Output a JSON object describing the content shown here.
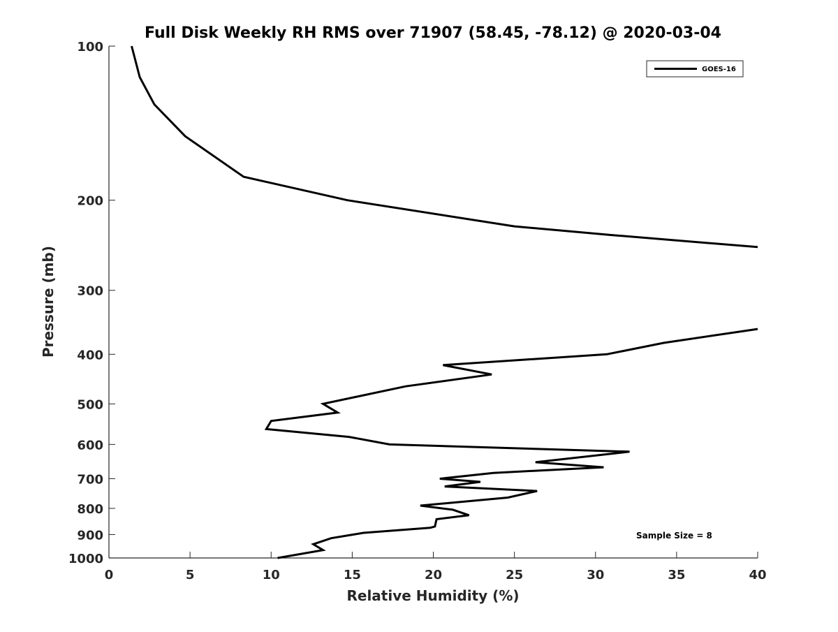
{
  "chart_data": {
    "type": "line",
    "title": "Full Disk Weekly RH RMS over 71907 (58.45, -78.12) @ 2020-03-04",
    "xlabel": "Relative Humidity (%)",
    "ylabel": "Pressure (mb)",
    "xlim": [
      0,
      40
    ],
    "ylim": [
      100,
      1000
    ],
    "y_scale": "log",
    "y_reversed": true,
    "grid": false,
    "xticks": [
      0,
      5,
      10,
      15,
      20,
      25,
      30,
      35,
      40
    ],
    "yticks": [
      100,
      200,
      300,
      400,
      500,
      600,
      700,
      800,
      900,
      1000
    ],
    "legend_position": "top-right",
    "annotation": "Sample Size = 8",
    "series": [
      {
        "name": "GOES-16",
        "color": "#000000",
        "segments": [
          [
            [
              1.4,
              100
            ],
            [
              1.9,
              115
            ],
            [
              2.8,
              130
            ],
            [
              4.7,
              150
            ],
            [
              8.3,
              180
            ],
            [
              14.7,
              200
            ],
            [
              25,
              225
            ],
            [
              31,
              234
            ],
            [
              40,
              247
            ]
          ],
          [
            [
              40,
              357
            ],
            [
              34.2,
              380
            ],
            [
              30.7,
              400
            ],
            [
              20.6,
              420
            ],
            [
              23.6,
              438
            ],
            [
              18.3,
              462
            ],
            [
              13.2,
              500
            ],
            [
              14.1,
              520
            ],
            [
              10.0,
              540
            ],
            [
              9.7,
              560
            ],
            [
              14.8,
              580
            ],
            [
              17.3,
              600
            ],
            [
              32.1,
              620
            ],
            [
              26.3,
              650
            ],
            [
              30.5,
              665
            ],
            [
              23.7,
              682
            ],
            [
              20.4,
              700
            ],
            [
              22.9,
              710
            ],
            [
              20.7,
              725
            ],
            [
              26.4,
              740
            ],
            [
              24.6,
              762
            ],
            [
              19.2,
              790
            ],
            [
              21.2,
              805
            ],
            [
              22.2,
              825
            ],
            [
              20.2,
              840
            ],
            [
              20.1,
              868
            ],
            [
              19.8,
              873
            ],
            [
              15.7,
              893
            ],
            [
              13.7,
              915
            ],
            [
              12.6,
              940
            ],
            [
              13.2,
              965
            ],
            [
              10.4,
              1000
            ]
          ]
        ]
      }
    ]
  }
}
